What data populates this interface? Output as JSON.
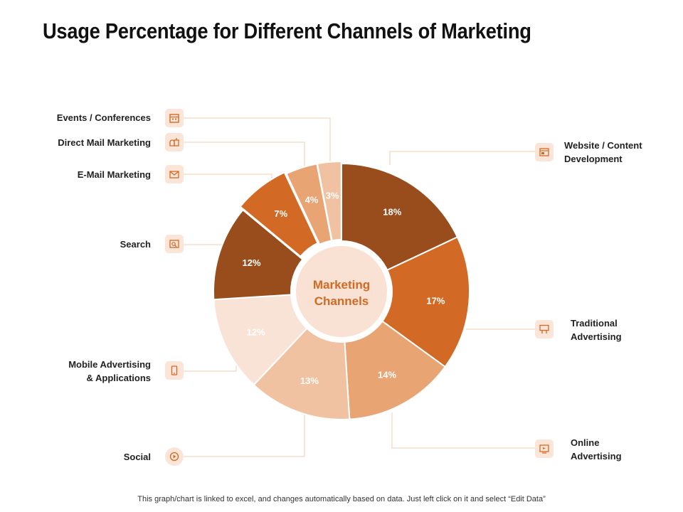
{
  "title": "Usage Percentage for Different Channels of Marketing",
  "footer": "This graph/chart is linked to excel, and changes automatically based on data. Just left click on it and select “Edit Data”",
  "center_label": [
    "Marketing",
    "Channels"
  ],
  "chart_data": {
    "type": "pie",
    "title": "Usage Percentage for Different Channels of Marketing",
    "center_text": "Marketing Channels",
    "slices": [
      {
        "label": "Website / Content Development",
        "value": 18,
        "display": "18%",
        "color": "#9a4d1c",
        "icon": "website-icon"
      },
      {
        "label": "Traditional Advertising",
        "value": 17,
        "display": "17%",
        "color": "#d26a25",
        "icon": "billboard-icon"
      },
      {
        "label": "Online Advertising",
        "value": 14,
        "display": "14%",
        "color": "#e8a473",
        "icon": "online-ad-icon"
      },
      {
        "label": "Social",
        "value": 13,
        "display": "13%",
        "color": "#f0c2a2",
        "icon": "social-icon"
      },
      {
        "label": "Mobile Advertising & Applications",
        "value": 12,
        "display": "12%",
        "color": "#f9e3d7",
        "icon": "mobile-icon"
      },
      {
        "label": "Search",
        "value": 12,
        "display": "12%",
        "color": "#9a4d1c",
        "icon": "search-icon"
      },
      {
        "label": "E-Mail Marketing",
        "value": 7,
        "display": "7%",
        "color": "#d26a25",
        "icon": "email-icon"
      },
      {
        "label": "Direct Mail Marketing",
        "value": 4,
        "display": "4%",
        "color": "#e8a473",
        "icon": "mailbox-icon"
      },
      {
        "label": "Events / Conferences",
        "value": 3,
        "display": "3%",
        "color": "#f0c2a2",
        "icon": "calendar-icon"
      }
    ]
  },
  "labels": {
    "website": [
      "Website / Content",
      "Development"
    ],
    "traditional": [
      "Traditional",
      "Advertising"
    ],
    "online": [
      "Online",
      "Advertising"
    ],
    "social": [
      "Social"
    ],
    "mobile": [
      "Mobile Advertising",
      "& Applications"
    ],
    "search": [
      "Search"
    ],
    "email": [
      "E-Mail Marketing"
    ],
    "direct_mail": [
      "Direct Mail Marketing"
    ],
    "events": [
      "Events / Conferences"
    ]
  }
}
